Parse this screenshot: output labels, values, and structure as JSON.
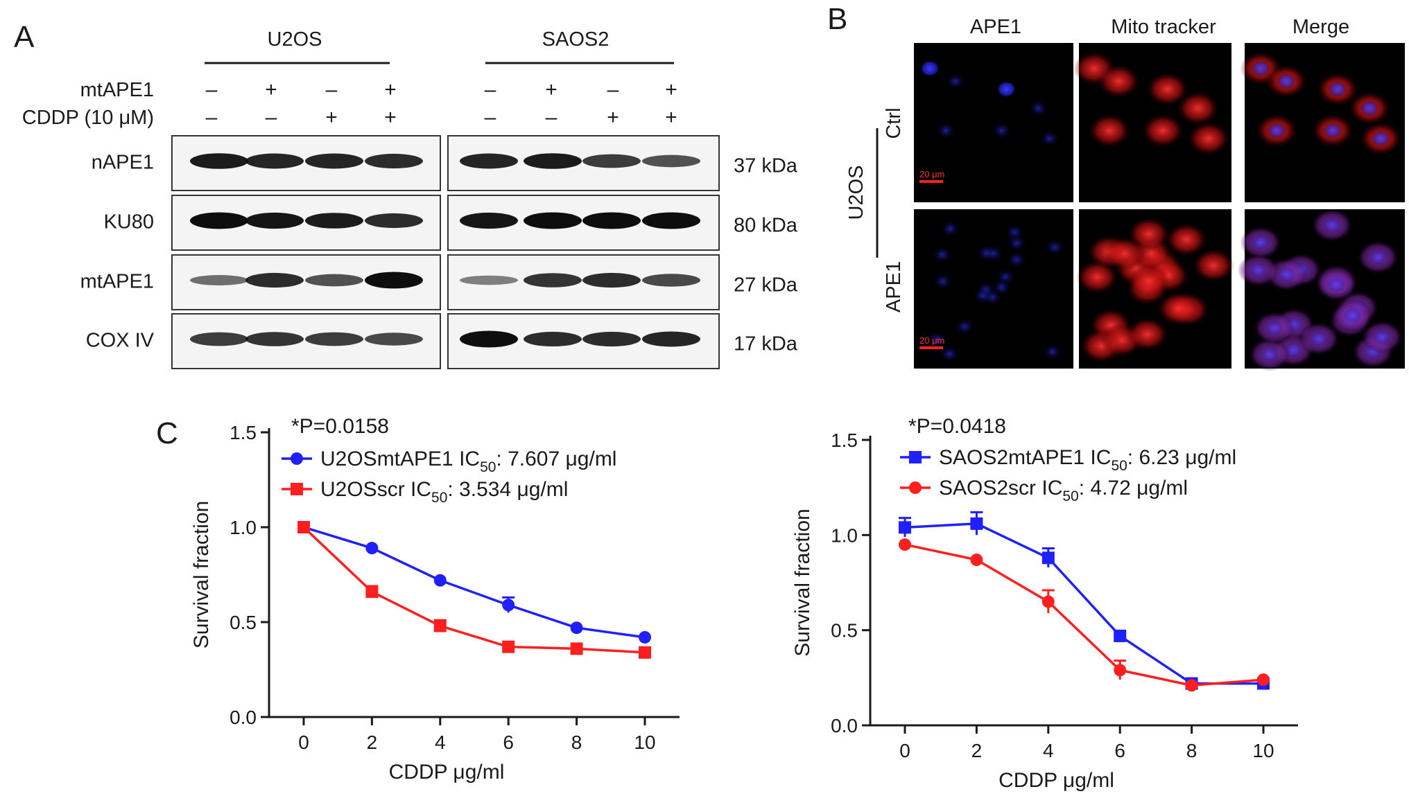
{
  "panel_A": {
    "label": "A",
    "groups": [
      "U2OS",
      "SAOS2"
    ],
    "rows": [
      {
        "name": "mtAPE1",
        "signs": [
          "–",
          "+",
          "–",
          "+"
        ]
      },
      {
        "name": "CDDP (10 μM)",
        "signs": [
          "–",
          "–",
          "+",
          "+"
        ]
      }
    ],
    "blots": [
      {
        "name": "nAPE1",
        "mw": "37 kDa",
        "u2os": [
          0.9,
          0.85,
          0.85,
          0.8
        ],
        "saos2": [
          0.85,
          0.9,
          0.7,
          0.55
        ]
      },
      {
        "name": "KU80",
        "mw": "80 kDa",
        "u2os": [
          1.0,
          0.95,
          0.9,
          0.8
        ],
        "saos2": [
          0.95,
          1.0,
          1.0,
          1.0
        ]
      },
      {
        "name": "mtAPE1",
        "mw": "27 kDa",
        "u2os": [
          0.35,
          0.8,
          0.55,
          1.0
        ],
        "saos2": [
          0.25,
          0.75,
          0.8,
          0.6
        ]
      },
      {
        "name": "COX IV",
        "mw": "17 kDa",
        "u2os": [
          0.7,
          0.75,
          0.7,
          0.6
        ],
        "saos2": [
          1.0,
          0.8,
          0.8,
          0.85
        ]
      }
    ]
  },
  "panel_B": {
    "label": "B",
    "columns": [
      "APE1",
      "Mito tracker",
      "Merge"
    ],
    "row_labels": [
      "Ctrl",
      "APE1"
    ],
    "side_label": "U2OS",
    "scale_bar": "20 μm"
  },
  "panel_C": {
    "label": "C"
  },
  "chart_data": [
    {
      "type": "line",
      "title": "",
      "annotation": "*P=0.0158",
      "xlabel": "CDDP μg/ml",
      "ylabel": "Survival fraction",
      "x": [
        0,
        2,
        4,
        6,
        8,
        10
      ],
      "xlim": [
        0,
        10
      ],
      "ylim": [
        0.0,
        1.5
      ],
      "xticks": [
        "0",
        "2",
        "4",
        "6",
        "8",
        "10"
      ],
      "yticks": [
        "0.0",
        "0.5",
        "1.0",
        "1.5"
      ],
      "legend_position": "top-left",
      "series": [
        {
          "name": "U2OSmtAPE1",
          "ic_label": "7.607 μg/ml",
          "color": "#1f1fff",
          "marker": "circle",
          "values": [
            1.0,
            0.89,
            0.72,
            0.59,
            0.47,
            0.42
          ],
          "errors": [
            0.02,
            0.01,
            0.01,
            0.04,
            0.01,
            0.01
          ]
        },
        {
          "name": "U2OSscr",
          "ic_label": "3.534 μg/ml",
          "color": "#ff1f1f",
          "marker": "square",
          "values": [
            1.0,
            0.66,
            0.48,
            0.37,
            0.36,
            0.34
          ],
          "errors": [
            0.02,
            0.03,
            0.03,
            0.01,
            0.01,
            0.01
          ]
        }
      ]
    },
    {
      "type": "line",
      "title": "",
      "annotation": "*P=0.0418",
      "xlabel": "CDDP μg/ml",
      "ylabel": "Survival fraction",
      "x": [
        0,
        2,
        4,
        6,
        8,
        10
      ],
      "xlim": [
        0,
        10
      ],
      "ylim": [
        0.0,
        1.5
      ],
      "xticks": [
        "0",
        "2",
        "4",
        "6",
        "8",
        "10"
      ],
      "yticks": [
        "0.0",
        "0.5",
        "1.0",
        "1.5"
      ],
      "legend_position": "top-left",
      "series": [
        {
          "name": "SAOS2mtAPE1",
          "ic_label": "6.23 μg/ml",
          "color": "#1f1fff",
          "marker": "square",
          "values": [
            1.04,
            1.06,
            0.88,
            0.47,
            0.22,
            0.22
          ],
          "errors": [
            0.05,
            0.06,
            0.05,
            0.01,
            0.01,
            0.01
          ]
        },
        {
          "name": "SAOS2scr",
          "ic_label": "4.72 μg/ml",
          "color": "#ff1f1f",
          "marker": "circle",
          "values": [
            0.95,
            0.87,
            0.65,
            0.29,
            0.21,
            0.24
          ],
          "errors": [
            0.01,
            0.01,
            0.06,
            0.05,
            0.01,
            0.01
          ]
        }
      ]
    }
  ]
}
